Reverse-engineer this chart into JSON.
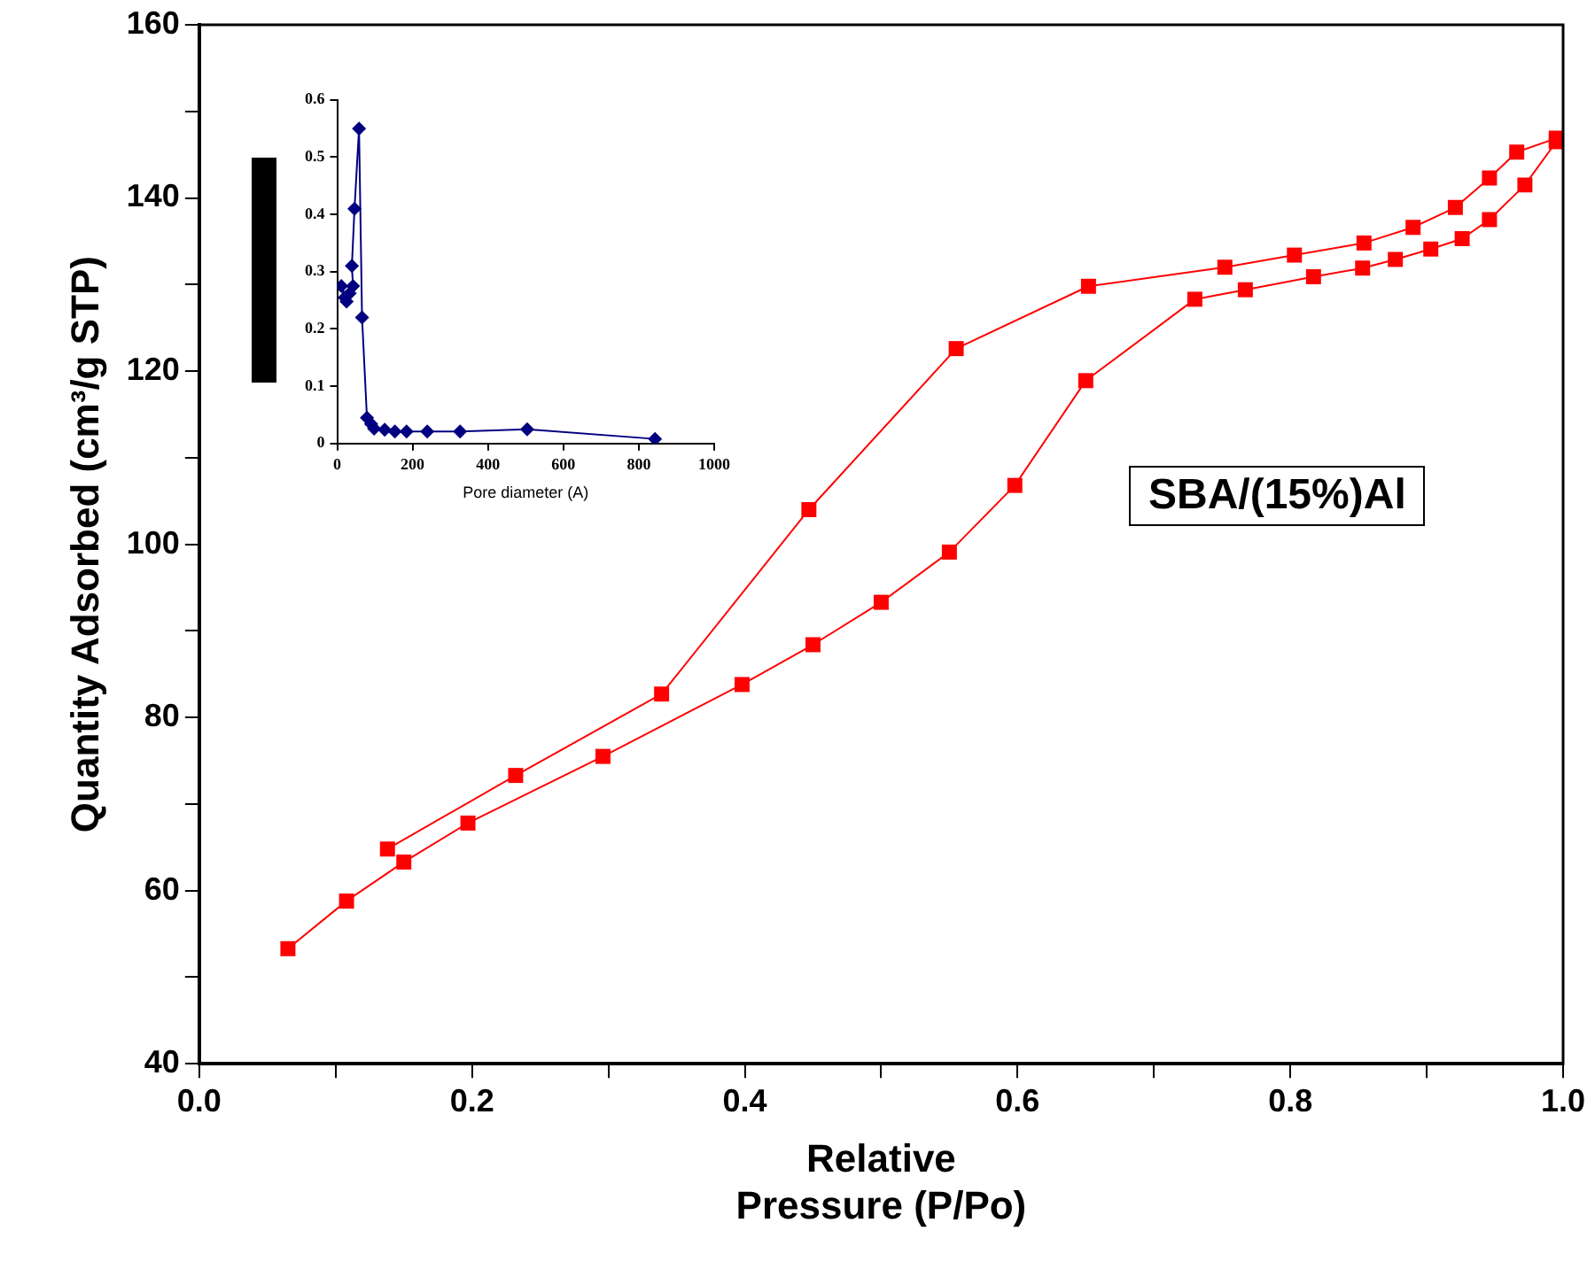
{
  "chart_data": [
    {
      "type": "line",
      "xlabel": "Relative Pressure (P/Po)",
      "ylabel": "Quantity Adsorbed (cm³/g STP)",
      "annotations": [
        "SBA/(15%)Al"
      ],
      "marker": "square",
      "grid": false,
      "legend": false,
      "xlim": [
        0,
        1
      ],
      "xticks": [
        {
          "value": 0,
          "label": "0.0"
        },
        {
          "value": 0.1,
          "label": null
        },
        {
          "value": 0.2,
          "label": "0.2"
        },
        {
          "value": 0.3,
          "label": null
        },
        {
          "value": 0.4,
          "label": "0.4"
        },
        {
          "value": 0.5,
          "label": null
        },
        {
          "value": 0.6,
          "label": "0.6"
        },
        {
          "value": 0.7,
          "label": null
        },
        {
          "value": 0.8,
          "label": "0.8"
        },
        {
          "value": 0.9,
          "label": null
        },
        {
          "value": 1,
          "label": "1.0"
        }
      ],
      "ylim": [
        40,
        160
      ],
      "yticks": [
        40,
        {
          "value": 50,
          "label": null
        },
        60,
        {
          "value": 70,
          "label": null
        },
        80,
        {
          "value": 90,
          "label": null
        },
        100,
        {
          "value": 110,
          "label": null
        },
        120,
        {
          "value": 130,
          "label": null
        },
        140,
        {
          "value": 150,
          "label": null
        },
        160
      ],
      "series": [
        {
          "color": "#ff0000",
          "x": [
            0.065,
            0.108,
            0.15,
            0.197,
            0.296,
            0.398,
            0.45,
            0.5,
            0.55,
            0.598,
            0.65,
            0.73,
            0.767,
            0.817,
            0.853,
            0.877,
            0.903,
            0.926,
            0.946,
            0.972,
            0.995
          ],
          "values": [
            53.3,
            58.8,
            63.3,
            67.8,
            75.5,
            83.8,
            88.4,
            93.3,
            99.1,
            106.8,
            118.9,
            128.3,
            129.4,
            130.9,
            131.9,
            132.9,
            134.1,
            135.3,
            137.5,
            141.5,
            146.5
          ]
        },
        {
          "color": "#ff0000",
          "x": [
            0.138,
            0.232,
            0.339,
            0.447,
            0.555,
            0.652,
            0.752,
            0.803,
            0.854,
            0.89,
            0.921,
            0.946,
            0.966,
            0.995
          ],
          "values": [
            64.8,
            73.3,
            82.7,
            104,
            122.6,
            129.8,
            132,
            133.4,
            134.8,
            136.6,
            138.9,
            142.3,
            145.3,
            146.9
          ]
        }
      ]
    },
    {
      "type": "line",
      "xlabel": "Pore diameter (A)",
      "marker": "diamond",
      "grid": false,
      "legend": false,
      "xlim": [
        0,
        1000
      ],
      "xticks": [
        0,
        200,
        400,
        600,
        800,
        1000
      ],
      "ylim": [
        0,
        0.6
      ],
      "yticks": [
        0,
        0.1,
        0.2,
        0.3,
        0.4,
        0.5,
        0.6
      ],
      "series": [
        {
          "color": "#000080",
          "x": [
            11,
            20,
            25,
            33,
            42,
            39,
            46,
            58,
            66,
            79,
            90,
            98,
            126,
            153,
            184,
            239,
            326,
            504,
            843
          ],
          "values": [
            0.275,
            0.255,
            0.248,
            0.262,
            0.275,
            0.31,
            0.41,
            0.55,
            0.22,
            0.045,
            0.034,
            0.026,
            0.024,
            0.021,
            0.021,
            0.021,
            0.021,
            0.025,
            0.008
          ]
        }
      ]
    }
  ]
}
